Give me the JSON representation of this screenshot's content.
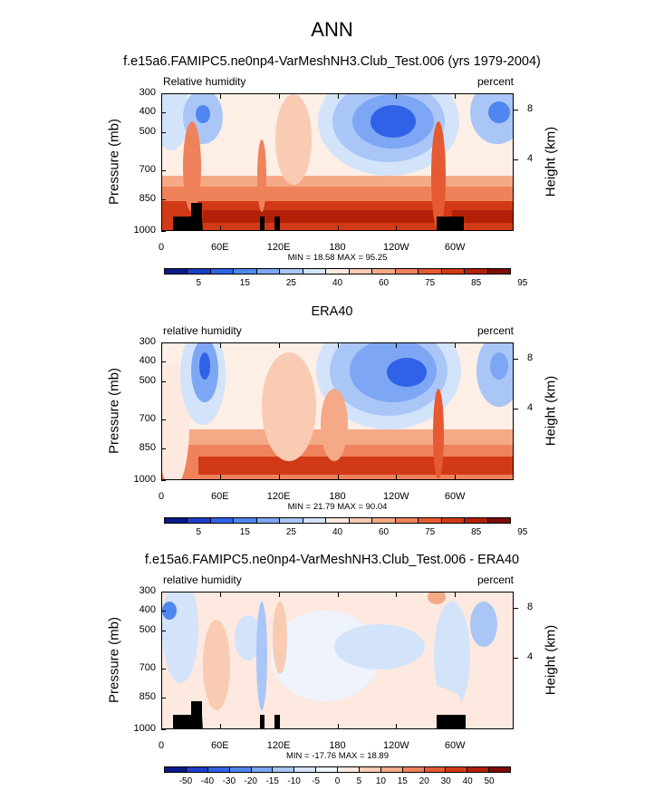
{
  "page_title": "ANN",
  "chart_data": [
    {
      "type": "heatmap",
      "title": "f.e15a6.FAMIPC5.ne0np4-VarMeshNH3.Club_Test.006 (yrs 1979-2004)",
      "left_label": "Relative humidity",
      "right_label": "percent",
      "ylabel": "Pressure (mb)",
      "y2label": "Height (km)",
      "y_ticks": [
        "300",
        "400",
        "500",
        "700",
        "850",
        "1000"
      ],
      "y2_ticks": [
        "8",
        "4"
      ],
      "x_ticks": [
        "0",
        "60E",
        "120E",
        "180",
        "120W",
        "60W"
      ],
      "xlim": [
        0,
        360
      ],
      "minmax": "MIN = 18.58 MAX = 95.25",
      "colorbar_labels": [
        "5",
        "15",
        "25",
        "40",
        "60",
        "75",
        "85",
        "95"
      ],
      "colors": [
        "#0a1a8c",
        "#1c3fc8",
        "#2f62e6",
        "#4f86f0",
        "#7da7f4",
        "#a9c6f7",
        "#d3e3fa",
        "#fde9df",
        "#f9cbb3",
        "#f5a986",
        "#ef825b",
        "#e65a33",
        "#d23a17",
        "#b32008",
        "#7f0c04"
      ]
    },
    {
      "type": "heatmap",
      "title": "ERA40",
      "left_label": "relative humidity",
      "right_label": "percent",
      "ylabel": "Pressure (mb)",
      "y2label": "Height (km)",
      "y_ticks": [
        "300",
        "400",
        "500",
        "700",
        "850",
        "1000"
      ],
      "y2_ticks": [
        "8",
        "4"
      ],
      "x_ticks": [
        "0",
        "60E",
        "120E",
        "180",
        "120W",
        "60W"
      ],
      "xlim": [
        0,
        360
      ],
      "minmax": "MIN = 21.79 MAX = 90.04",
      "colorbar_labels": [
        "5",
        "15",
        "25",
        "40",
        "60",
        "75",
        "85",
        "95"
      ],
      "colors": [
        "#0a1a8c",
        "#1c3fc8",
        "#2f62e6",
        "#4f86f0",
        "#7da7f4",
        "#a9c6f7",
        "#d3e3fa",
        "#fde9df",
        "#f9cbb3",
        "#f5a986",
        "#ef825b",
        "#e65a33",
        "#d23a17",
        "#b32008",
        "#7f0c04"
      ]
    },
    {
      "type": "heatmap",
      "title": "f.e15a6.FAMIPC5.ne0np4-VarMeshNH3.Club_Test.006 - ERA40",
      "left_label": "relative humidity",
      "right_label": "percent",
      "ylabel": "Pressure (mb)",
      "y2label": "Height (km)",
      "y_ticks": [
        "300",
        "400",
        "500",
        "700",
        "850",
        "1000"
      ],
      "y2_ticks": [
        "8",
        "4"
      ],
      "x_ticks": [
        "0",
        "60E",
        "120E",
        "180",
        "120W",
        "60W"
      ],
      "xlim": [
        0,
        360
      ],
      "minmax": "MIN = -17.76  MAX = 18.89",
      "colorbar_labels": [
        "-50",
        "-40",
        "-30",
        "-20",
        "-15",
        "-10",
        "-5",
        "0",
        "5",
        "10",
        "15",
        "20",
        "30",
        "40",
        "50"
      ],
      "colors": [
        "#0a1a8c",
        "#1c3fc8",
        "#2f62e6",
        "#4f86f0",
        "#7da7f4",
        "#a9c6f7",
        "#d3e3fa",
        "#eef3fc",
        "#fde9df",
        "#f9cbb3",
        "#f5a986",
        "#ef825b",
        "#e65a33",
        "#d23a17",
        "#b32008",
        "#7f0c04"
      ]
    }
  ]
}
